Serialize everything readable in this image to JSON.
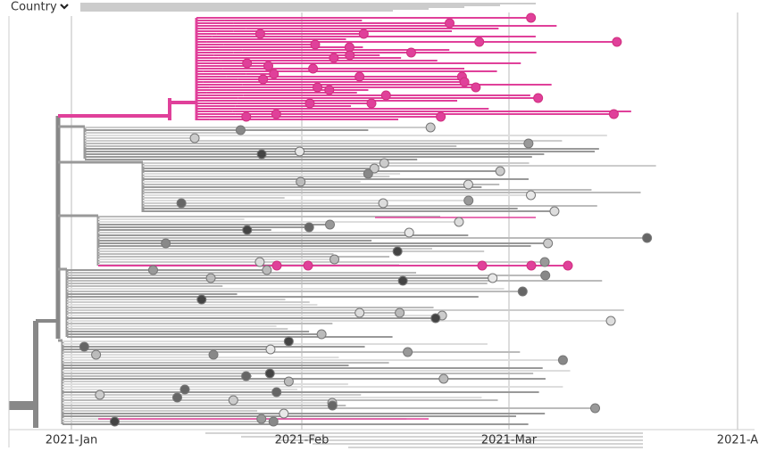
{
  "header": {
    "control": "Country"
  },
  "axis": {
    "ticks": [
      {
        "label": "2021-Jan"
      },
      {
        "label": "2021-Feb"
      },
      {
        "label": "2021-Mar"
      },
      {
        "label": "2021-A"
      }
    ]
  }
}
